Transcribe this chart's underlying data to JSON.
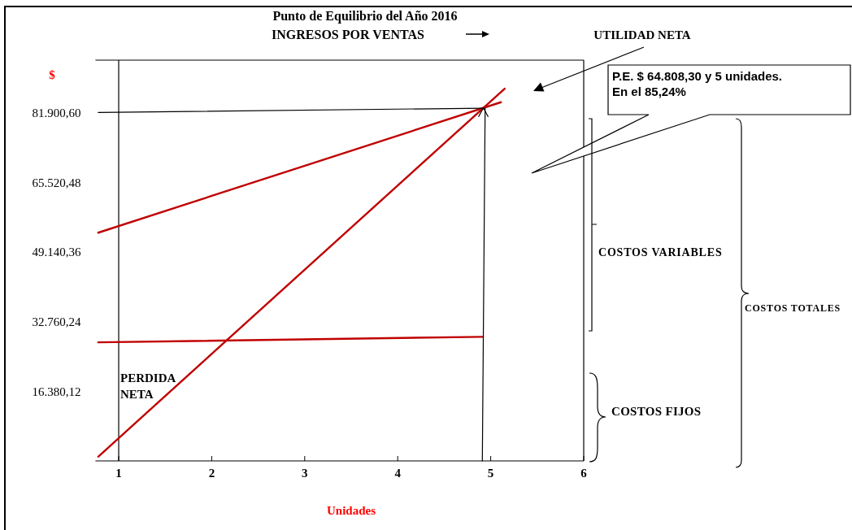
{
  "chart_data": {
    "type": "line",
    "title": "Punto de Equilibrio del Año 2016",
    "xlabel": "Unidades",
    "ylabel": "$",
    "series": [
      {
        "color": "#c00000",
        "x": [
          0.78,
          5.15
        ],
        "values": [
          1000,
          87600
        ]
      },
      {
        "color": "#c00000",
        "x": [
          0.78,
          5.11
        ],
        "values": [
          53700,
          84400
        ]
      },
      {
        "color": "#c00000",
        "x": [
          0.78,
          4.91
        ],
        "values": [
          27900,
          29200
        ]
      },
      {
        "color": "#000000",
        "x": [
          0.78,
          4.93
        ],
        "values": [
          82000,
          83000
        ]
      },
      {
        "color": "#000000",
        "x": [
          4.94,
          4.91
        ],
        "values": [
          83000,
          0
        ]
      }
    ],
    "xlim": [
      0.75,
      6
    ],
    "xticks": [
      1,
      2,
      3,
      4,
      5,
      6
    ],
    "ylim": [
      0,
      94300
    ],
    "yticks": [
      {
        "value": 16380.12,
        "label": "16.380,12"
      },
      {
        "value": 32760.24,
        "label": "32.760,24"
      },
      {
        "value": 49140.36,
        "label": "49.140,36"
      },
      {
        "value": 65520.48,
        "label": "65.520,48"
      },
      {
        "value": 81900.6,
        "label": "81.900,60"
      }
    ],
    "ref_lines": [
      {
        "axis": "x",
        "value": 1
      }
    ],
    "annotations": [
      "INGRESOS POR VENTAS",
      "UTILIDAD NETA",
      "P.E. $ 64.808,30  y 5 unidades.\nEn el 85,24%",
      "COSTOS VARIABLES",
      "COSTOS FIJOS",
      "COSTOS TOTALES",
      "PERDIDA\nNETA"
    ]
  }
}
